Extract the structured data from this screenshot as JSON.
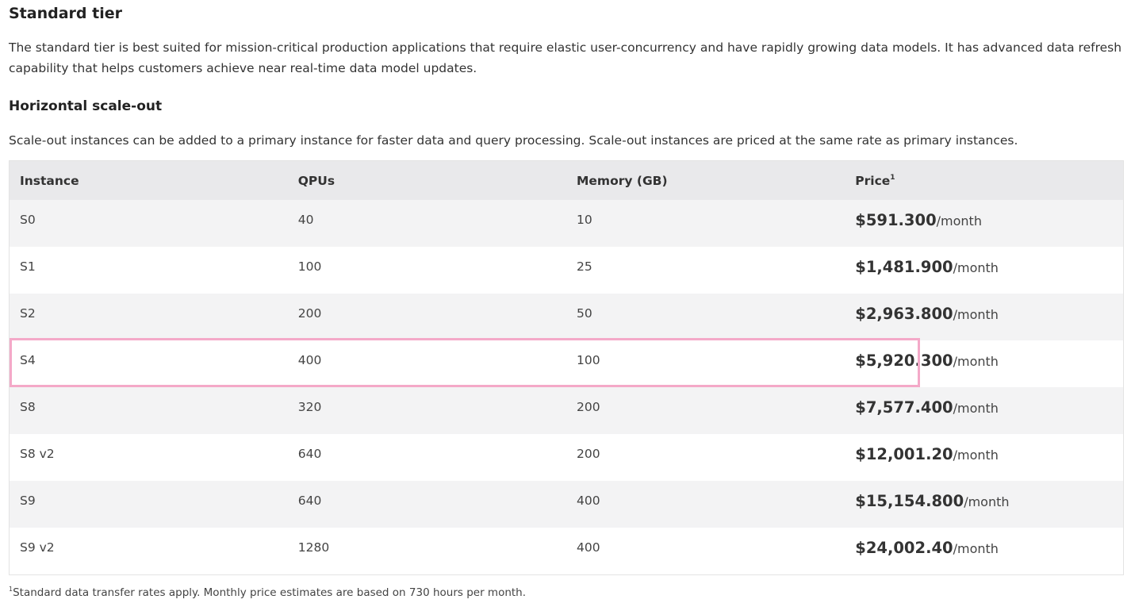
{
  "header": {
    "title": "Standard tier",
    "description": "The standard tier is best suited for mission-critical production applications that require elastic user-concurrency and have rapidly growing data models. It has advanced data refresh capability that helps customers achieve near real-time data model updates."
  },
  "section": {
    "title": "Horizontal scale-out",
    "description": "Scale-out instances can be added to a primary instance for faster data and query processing. Scale-out instances are priced at the same rate as primary instances."
  },
  "table": {
    "columns": [
      "Instance",
      "QPUs",
      "Memory (GB)",
      "Price"
    ],
    "price_note_marker": "1",
    "rows": [
      [
        "S0",
        "40",
        "10",
        "$591.300",
        "/month"
      ],
      [
        "S1",
        "100",
        "25",
        "$1,481.900",
        "/month"
      ],
      [
        "S2",
        "200",
        "50",
        "$2,963.800",
        "/month"
      ],
      [
        "S4",
        "400",
        "100",
        "$5,920.300",
        "/month"
      ],
      [
        "S8",
        "320",
        "200",
        "$7,577.400",
        "/month"
      ],
      [
        "S8 v2",
        "640",
        "200",
        "$12,001.20",
        "/month"
      ],
      [
        "S9",
        "640",
        "400",
        "$15,154.800",
        "/month"
      ],
      [
        "S9 v2",
        "1280",
        "400",
        "$24,002.40",
        "/month"
      ]
    ]
  },
  "footnote": {
    "marker": "1",
    "text": "Standard data transfer rates apply. Monthly price estimates are based on 730 hours per month."
  }
}
